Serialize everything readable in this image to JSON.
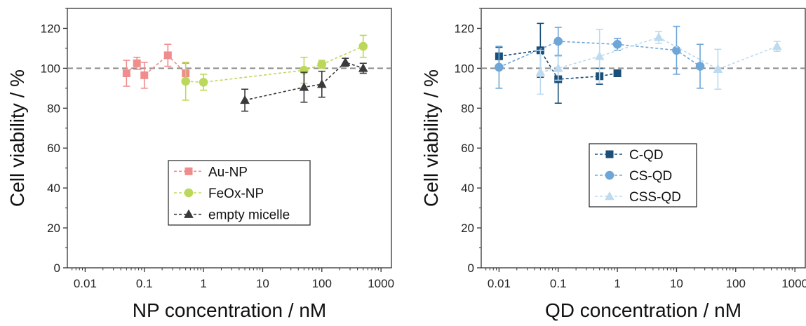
{
  "chart_data": [
    {
      "type": "scatter",
      "xlabel": "NP concentration / nM",
      "ylabel": "Cell viability / %",
      "xscale": "log",
      "xlim": [
        0.005,
        1500
      ],
      "ylim": [
        0,
        130
      ],
      "x_ticks": [
        "0.01",
        "0.1",
        "1",
        "10",
        "100",
        "1000"
      ],
      "y_ticks": [
        "0",
        "20",
        "40",
        "60",
        "80",
        "100",
        "120"
      ],
      "reference_line": 100,
      "legend_position": "center",
      "grid": false,
      "series": [
        {
          "name": "Au-NP",
          "color": "#f08c8c",
          "marker": "square",
          "points": [
            {
              "x": 0.05,
              "y": 97.5,
              "err": 6.5
            },
            {
              "x": 0.075,
              "y": 102.5,
              "err": 3
            },
            {
              "x": 0.1,
              "y": 96.5,
              "err": 6.5
            },
            {
              "x": 0.25,
              "y": 106.5,
              "err": 5.5
            },
            {
              "x": 0.5,
              "y": 97.5,
              "err": 5
            }
          ]
        },
        {
          "name": "FeOx-NP",
          "color": "#bcd85a",
          "marker": "circle",
          "points": [
            {
              "x": 0.5,
              "y": 93.5,
              "err": 9.5
            },
            {
              "x": 1,
              "y": 93,
              "err": 4
            },
            {
              "x": 50,
              "y": 99,
              "err": 6.5
            },
            {
              "x": 100,
              "y": 102,
              "err": 2
            },
            {
              "x": 500,
              "y": 111,
              "err": 5.5
            }
          ]
        },
        {
          "name": "empty micelle",
          "color": "#3a3a3a",
          "marker": "triangle",
          "points": [
            {
              "x": 5,
              "y": 84,
              "err": 5.5
            },
            {
              "x": 50,
              "y": 90.5,
              "err": 7.5
            },
            {
              "x": 100,
              "y": 92,
              "err": 6.5
            },
            {
              "x": 250,
              "y": 103,
              "err": 2
            },
            {
              "x": 500,
              "y": 100,
              "err": 2.5
            }
          ]
        }
      ]
    },
    {
      "type": "scatter",
      "xlabel": "QD concentration / nM",
      "ylabel": "Cell viability / %",
      "xscale": "log",
      "xlim": [
        0.005,
        1500
      ],
      "ylim": [
        0,
        130
      ],
      "x_ticks": [
        "0.01",
        "0.1",
        "1",
        "10",
        "100",
        "1000"
      ],
      "y_ticks": [
        "0",
        "20",
        "40",
        "60",
        "80",
        "100",
        "120"
      ],
      "reference_line": 100,
      "legend_position": "center",
      "grid": false,
      "series": [
        {
          "name": "C-QD",
          "color": "#1b4f78",
          "marker": "square",
          "points": [
            {
              "x": 0.01,
              "y": 106,
              "err": 4.5
            },
            {
              "x": 0.05,
              "y": 109,
              "err": 13.5
            },
            {
              "x": 0.1,
              "y": 94.5,
              "err": 12
            },
            {
              "x": 0.5,
              "y": 96,
              "err": 4
            },
            {
              "x": 1,
              "y": 97.5,
              "err": 1.5
            }
          ]
        },
        {
          "name": "CS-QD",
          "color": "#6ea6d8",
          "marker": "circle",
          "points": [
            {
              "x": 0.01,
              "y": 100.5,
              "err": 10.5
            },
            {
              "x": 0.1,
              "y": 113.5,
              "err": 7
            },
            {
              "x": 1,
              "y": 112,
              "err": 3
            },
            {
              "x": 10,
              "y": 109,
              "err": 12
            },
            {
              "x": 25,
              "y": 101,
              "err": 11
            }
          ]
        },
        {
          "name": "CSS-QD",
          "color": "#bcdaf0",
          "marker": "triangle",
          "points": [
            {
              "x": 0.05,
              "y": 98,
              "err": 11
            },
            {
              "x": 0.1,
              "y": 100,
              "err": 6
            },
            {
              "x": 0.5,
              "y": 106,
              "err": 13.5
            },
            {
              "x": 5,
              "y": 115.5,
              "err": 3
            },
            {
              "x": 50,
              "y": 99.5,
              "err": 10
            },
            {
              "x": 500,
              "y": 111,
              "err": 2.5
            }
          ]
        }
      ]
    }
  ]
}
